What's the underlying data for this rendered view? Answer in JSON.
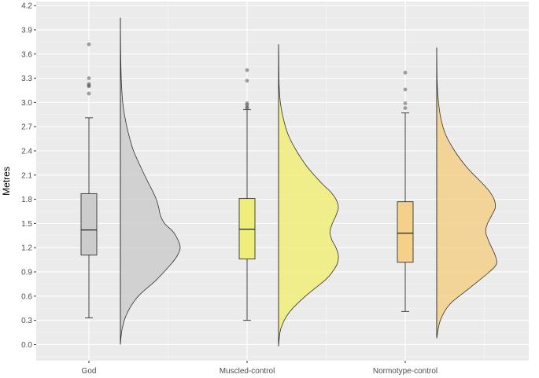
{
  "chart_data": {
    "type": "raincloud",
    "title": "",
    "xlabel": "",
    "ylabel": "Metres",
    "ylim": [
      -0.2,
      4.25
    ],
    "yticks": [
      "0.0",
      "0.3",
      "0.6",
      "0.9",
      "1.2",
      "1.5",
      "1.8",
      "2.1",
      "2.4",
      "2.7",
      "3.0",
      "3.3",
      "3.6",
      "3.9",
      "4.2"
    ],
    "grid": true,
    "legend": "none",
    "categories": [
      "God",
      "Muscled-control",
      "Normotype-control"
    ],
    "series": [
      {
        "category": "God",
        "color": "#cccccc",
        "box": {
          "min": 0.33,
          "q1": 1.11,
          "median": 1.42,
          "q3": 1.87,
          "max": 2.81
        },
        "outliers": [
          3.72,
          3.3,
          3.23,
          3.21,
          3.2,
          3.11
        ],
        "density": {
          "y": [
            0.0,
            0.2,
            0.4,
            0.6,
            0.8,
            1.0,
            1.1,
            1.2,
            1.3,
            1.4,
            1.5,
            1.6,
            1.7,
            1.8,
            1.9,
            2.0,
            2.2,
            2.4,
            2.6,
            2.8,
            3.0,
            3.2,
            3.4,
            3.6,
            3.8,
            4.05
          ],
          "width": [
            0.0,
            0.03,
            0.12,
            0.3,
            0.6,
            0.85,
            0.95,
            1.0,
            0.96,
            0.88,
            0.74,
            0.67,
            0.64,
            0.6,
            0.54,
            0.47,
            0.34,
            0.22,
            0.14,
            0.08,
            0.04,
            0.02,
            0.01,
            0.005,
            0.002,
            0.0
          ]
        }
      },
      {
        "category": "Muscled-control",
        "color": "#f0ee7a",
        "box": {
          "min": 0.3,
          "q1": 1.06,
          "median": 1.43,
          "q3": 1.81,
          "max": 2.91
        },
        "outliers": [
          3.4,
          3.27,
          2.99,
          2.97,
          2.94,
          2.93
        ],
        "density": {
          "y": [
            -0.02,
            0.2,
            0.4,
            0.6,
            0.8,
            0.9,
            1.0,
            1.1,
            1.2,
            1.3,
            1.4,
            1.5,
            1.6,
            1.7,
            1.8,
            1.9,
            2.0,
            2.2,
            2.4,
            2.6,
            2.8,
            3.0,
            3.2,
            3.4,
            3.6,
            3.72
          ],
          "width": [
            0.0,
            0.04,
            0.18,
            0.45,
            0.78,
            0.9,
            0.98,
            1.0,
            0.96,
            0.89,
            0.86,
            0.9,
            0.96,
            1.0,
            0.96,
            0.86,
            0.72,
            0.48,
            0.3,
            0.16,
            0.08,
            0.03,
            0.01,
            0.005,
            0.002,
            0.0
          ]
        }
      },
      {
        "category": "Normotype-control",
        "color": "#f5d08a",
        "box": {
          "min": 0.41,
          "q1": 1.02,
          "median": 1.38,
          "q3": 1.77,
          "max": 2.87
        },
        "outliers": [
          3.37,
          3.16,
          2.99,
          2.93
        ],
        "density": {
          "y": [
            0.08,
            0.3,
            0.5,
            0.7,
            0.9,
            1.0,
            1.1,
            1.2,
            1.3,
            1.4,
            1.5,
            1.6,
            1.7,
            1.8,
            1.9,
            2.0,
            2.2,
            2.4,
            2.6,
            2.8,
            3.0,
            3.2,
            3.4,
            3.68
          ],
          "width": [
            0.0,
            0.06,
            0.22,
            0.55,
            0.88,
            1.0,
            0.98,
            0.92,
            0.86,
            0.82,
            0.85,
            0.92,
            0.98,
            0.96,
            0.88,
            0.76,
            0.5,
            0.3,
            0.15,
            0.07,
            0.03,
            0.01,
            0.004,
            0.0
          ]
        }
      }
    ]
  }
}
